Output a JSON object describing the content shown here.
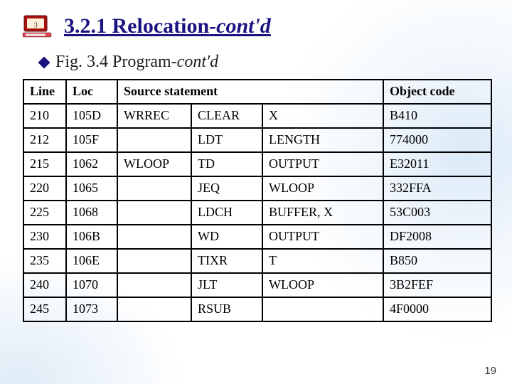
{
  "title": {
    "text_plain": "3.2.1 Relocation",
    "text_ital": "-cont'd",
    "color": "#1a1380"
  },
  "subtitle": {
    "text_plain": "Fig. 3.4 Program",
    "text_ital": "-cont'd",
    "bullet_color": "#1a1380"
  },
  "table": {
    "type": "table",
    "columns": [
      "Line",
      "Loc",
      "Source statement",
      "Object code"
    ],
    "column_span_src": 3,
    "header_fontsize": 18,
    "cell_fontsize": 18,
    "border_color": "#000000",
    "rows": [
      {
        "line": "210",
        "loc": "105D",
        "label": "WRREC",
        "mnemonic": "CLEAR",
        "operand": "X",
        "object": "B410"
      },
      {
        "line": "212",
        "loc": "105F",
        "label": "",
        "mnemonic": "LDT",
        "operand": "LENGTH",
        "object": "774000"
      },
      {
        "line": "215",
        "loc": "1062",
        "label": "WLOOP",
        "mnemonic": "TD",
        "operand": "OUTPUT",
        "object": "E32011"
      },
      {
        "line": "220",
        "loc": "1065",
        "label": "",
        "mnemonic": "JEQ",
        "operand": "WLOOP",
        "object": "332FFA"
      },
      {
        "line": "225",
        "loc": "1068",
        "label": "",
        "mnemonic": "LDCH",
        "operand": "BUFFER, X",
        "object": "53C003"
      },
      {
        "line": "230",
        "loc": "106B",
        "label": "",
        "mnemonic": "WD",
        "operand": "OUTPUT",
        "object": "DF2008"
      },
      {
        "line": "235",
        "loc": "106E",
        "label": "",
        "mnemonic": "TIXR",
        "operand": "T",
        "object": "B850"
      },
      {
        "line": "240",
        "loc": "1070",
        "label": "",
        "mnemonic": "JLT",
        "operand": "WLOOP",
        "object": "3B2FEF"
      },
      {
        "line": "245",
        "loc": "1073",
        "label": "",
        "mnemonic": "RSUB",
        "operand": "",
        "object": "4F0000"
      }
    ]
  },
  "page_number": "19",
  "background": {
    "overlay_color": "#b8d4ee"
  }
}
